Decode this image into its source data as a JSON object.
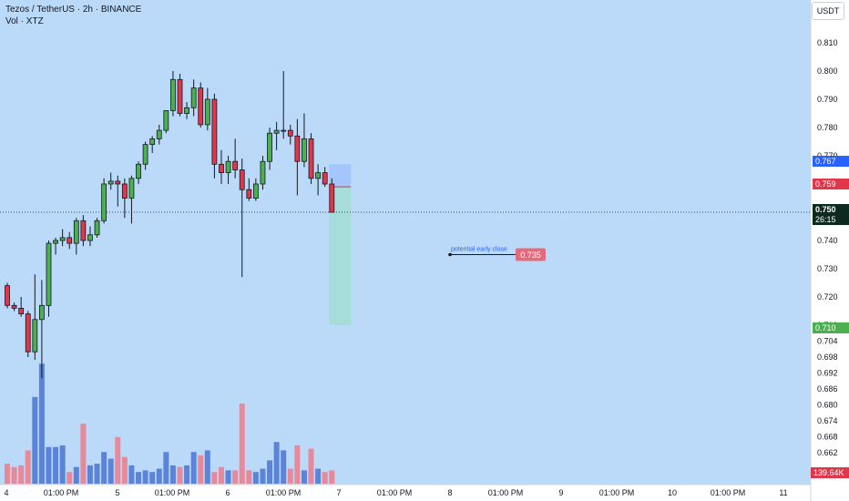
{
  "header": {
    "title": "Tezos / TetherUS · 2h · BINANCE",
    "volume_label": "Vol · XTZ",
    "currency": "USDT"
  },
  "colors": {
    "background": "#bbdafa",
    "up": "#4caf50",
    "down": "#e0374a",
    "vol_up": "#5b84d8",
    "vol_down": "#e8899a",
    "target_zone": "#a6dcd9",
    "stop_zone": "#a4c6fb",
    "annotation": "#2962ff",
    "annotation_badge": "#e46b7b"
  },
  "chart_data": {
    "type": "candlestick",
    "symbol": "Tezos / TetherUS",
    "interval": "2h",
    "exchange": "BINANCE",
    "price_axis": {
      "ticks": [
        "0.810",
        "0.800",
        "0.790",
        "0.780",
        "0.770",
        "0.760",
        "0.750",
        "0.740",
        "0.730",
        "0.720",
        "0.710",
        "0.704",
        "0.698",
        "0.692",
        "0.686",
        "0.680",
        "0.674",
        "0.668",
        "0.662"
      ],
      "upper_scale": [
        0.71,
        0.81
      ],
      "lower_scale_ticks": [
        0.71,
        0.704,
        0.698,
        0.692,
        0.686,
        0.68,
        0.674,
        0.668,
        0.662
      ]
    },
    "time_axis": [
      "4",
      "01:00 PM",
      "5",
      "01:00 PM",
      "6",
      "01:00 PM",
      "7",
      "01:00 PM",
      "8",
      "01:00 PM",
      "9",
      "01:00 PM",
      "10",
      "01:00 PM",
      "11"
    ],
    "candles": [
      {
        "o": 0.724,
        "h": 0.725,
        "l": 0.716,
        "c": 0.717
      },
      {
        "o": 0.717,
        "h": 0.718,
        "l": 0.715,
        "c": 0.716
      },
      {
        "o": 0.716,
        "h": 0.72,
        "l": 0.713,
        "c": 0.714
      },
      {
        "o": 0.714,
        "h": 0.715,
        "l": 0.698,
        "c": 0.7
      },
      {
        "o": 0.7,
        "h": 0.728,
        "l": 0.697,
        "c": 0.712
      },
      {
        "o": 0.712,
        "h": 0.726,
        "l": 0.69,
        "c": 0.717
      },
      {
        "o": 0.717,
        "h": 0.74,
        "l": 0.713,
        "c": 0.739
      },
      {
        "o": 0.739,
        "h": 0.741,
        "l": 0.735,
        "c": 0.74
      },
      {
        "o": 0.74,
        "h": 0.744,
        "l": 0.738,
        "c": 0.741
      },
      {
        "o": 0.741,
        "h": 0.743,
        "l": 0.737,
        "c": 0.739
      },
      {
        "o": 0.739,
        "h": 0.748,
        "l": 0.735,
        "c": 0.747
      },
      {
        "o": 0.747,
        "h": 0.749,
        "l": 0.738,
        "c": 0.74
      },
      {
        "o": 0.74,
        "h": 0.745,
        "l": 0.738,
        "c": 0.742
      },
      {
        "o": 0.742,
        "h": 0.748,
        "l": 0.741,
        "c": 0.747
      },
      {
        "o": 0.747,
        "h": 0.762,
        "l": 0.746,
        "c": 0.76
      },
      {
        "o": 0.76,
        "h": 0.764,
        "l": 0.758,
        "c": 0.761
      },
      {
        "o": 0.761,
        "h": 0.763,
        "l": 0.752,
        "c": 0.76
      },
      {
        "o": 0.76,
        "h": 0.762,
        "l": 0.748,
        "c": 0.755
      },
      {
        "o": 0.755,
        "h": 0.763,
        "l": 0.746,
        "c": 0.762
      },
      {
        "o": 0.762,
        "h": 0.768,
        "l": 0.76,
        "c": 0.767
      },
      {
        "o": 0.767,
        "h": 0.775,
        "l": 0.765,
        "c": 0.774
      },
      {
        "o": 0.774,
        "h": 0.777,
        "l": 0.771,
        "c": 0.776
      },
      {
        "o": 0.776,
        "h": 0.781,
        "l": 0.774,
        "c": 0.779
      },
      {
        "o": 0.779,
        "h": 0.786,
        "l": 0.778,
        "c": 0.786
      },
      {
        "o": 0.786,
        "h": 0.8,
        "l": 0.784,
        "c": 0.797
      },
      {
        "o": 0.797,
        "h": 0.799,
        "l": 0.784,
        "c": 0.785
      },
      {
        "o": 0.785,
        "h": 0.789,
        "l": 0.783,
        "c": 0.787
      },
      {
        "o": 0.787,
        "h": 0.797,
        "l": 0.784,
        "c": 0.794
      },
      {
        "o": 0.794,
        "h": 0.796,
        "l": 0.78,
        "c": 0.781
      },
      {
        "o": 0.781,
        "h": 0.794,
        "l": 0.779,
        "c": 0.79
      },
      {
        "o": 0.79,
        "h": 0.792,
        "l": 0.762,
        "c": 0.767
      },
      {
        "o": 0.767,
        "h": 0.772,
        "l": 0.76,
        "c": 0.764
      },
      {
        "o": 0.764,
        "h": 0.77,
        "l": 0.76,
        "c": 0.768
      },
      {
        "o": 0.768,
        "h": 0.776,
        "l": 0.762,
        "c": 0.765
      },
      {
        "o": 0.765,
        "h": 0.769,
        "l": 0.727,
        "c": 0.758
      },
      {
        "o": 0.758,
        "h": 0.762,
        "l": 0.754,
        "c": 0.755
      },
      {
        "o": 0.755,
        "h": 0.762,
        "l": 0.754,
        "c": 0.76
      },
      {
        "o": 0.76,
        "h": 0.77,
        "l": 0.758,
        "c": 0.768
      },
      {
        "o": 0.768,
        "h": 0.78,
        "l": 0.765,
        "c": 0.778
      },
      {
        "o": 0.778,
        "h": 0.782,
        "l": 0.772,
        "c": 0.779
      },
      {
        "o": 0.779,
        "h": 0.8,
        "l": 0.776,
        "c": 0.779
      },
      {
        "o": 0.779,
        "h": 0.781,
        "l": 0.774,
        "c": 0.777
      },
      {
        "o": 0.777,
        "h": 0.783,
        "l": 0.756,
        "c": 0.768
      },
      {
        "o": 0.768,
        "h": 0.785,
        "l": 0.766,
        "c": 0.776
      },
      {
        "o": 0.776,
        "h": 0.778,
        "l": 0.76,
        "c": 0.762
      },
      {
        "o": 0.762,
        "h": 0.767,
        "l": 0.756,
        "c": 0.764
      },
      {
        "o": 0.764,
        "h": 0.766,
        "l": 0.759,
        "c": 0.76
      },
      {
        "o": 0.76,
        "h": 0.762,
        "l": 0.75,
        "c": 0.75
      }
    ],
    "volume": [
      12,
      10,
      11,
      20,
      52,
      72,
      22,
      22,
      23,
      7,
      10,
      36,
      11,
      12,
      19,
      15,
      28,
      16,
      11,
      7,
      8,
      7,
      9,
      19,
      11,
      10,
      11,
      19,
      17,
      20,
      7,
      10,
      8,
      8,
      48,
      8,
      7,
      9,
      14,
      25,
      20,
      9,
      23,
      8,
      21,
      9,
      7,
      8
    ],
    "position": {
      "entry": 0.759,
      "stop": 0.767,
      "target": 0.71
    },
    "annotation": {
      "label": "potential early close",
      "value": "0.735"
    },
    "price_tags": {
      "stop": "0.767",
      "entry": "0.759",
      "current": "0.750",
      "countdown": "26:15",
      "target": "0.710",
      "volume": "139.64K"
    }
  }
}
